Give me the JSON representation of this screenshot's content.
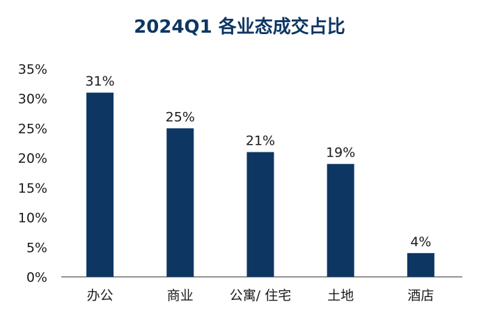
{
  "chart_data": {
    "type": "bar",
    "title": "2024Q1 各业态成交占比",
    "categories": [
      "办公",
      "商业",
      "公寓/ 住宅",
      "土地",
      "酒店"
    ],
    "values": [
      31,
      25,
      21,
      19,
      4
    ],
    "value_labels": [
      "31%",
      "25%",
      "21%",
      "19%",
      "4%"
    ],
    "y_ticks": [
      "0%",
      "5%",
      "10%",
      "15%",
      "20%",
      "25%",
      "30%",
      "35%"
    ],
    "ylim": [
      0,
      35
    ],
    "xlabel": "",
    "ylabel": "",
    "grid": false,
    "legend": "none",
    "bar_color": "#0d3663",
    "title_color": "#0d3663",
    "text_color": "#1a1a1a"
  }
}
